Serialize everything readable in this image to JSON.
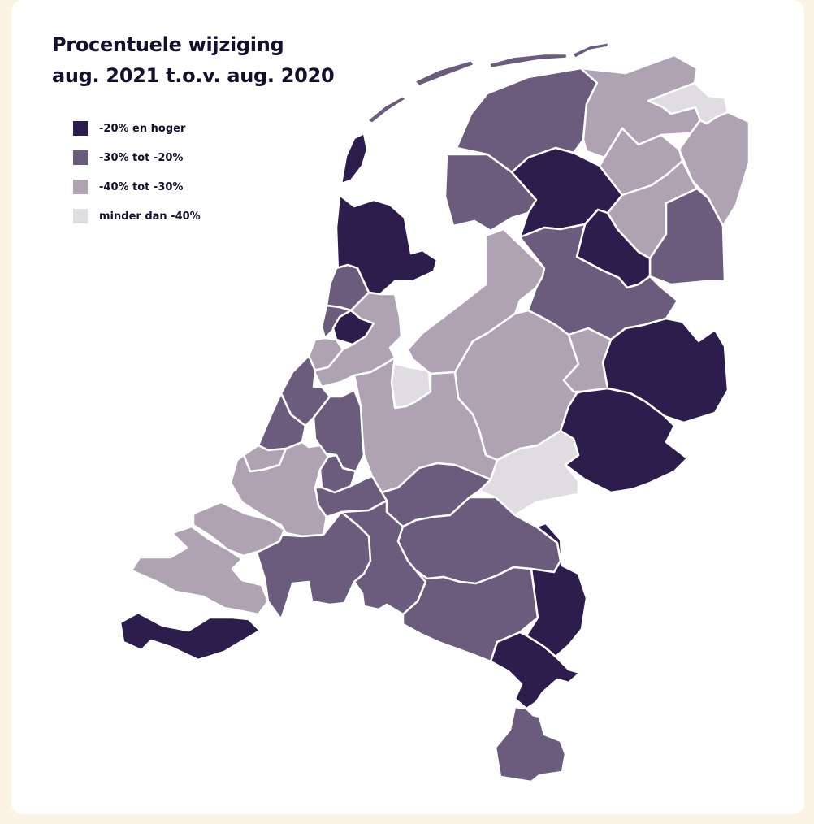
{
  "title": {
    "line1": "Procentuele wijziging",
    "line2": "aug. 2021 t.o.v. aug. 2020"
  },
  "legend": [
    {
      "label": "-20% en hoger",
      "color": "#2c1d4d"
    },
    {
      "label": "-30% tot -20%",
      "color": "#6b5b7c"
    },
    {
      "label": "-40% tot -30%",
      "color": "#aea2b3"
    },
    {
      "label": "minder dan -40%",
      "color": "#e0dde2"
    }
  ],
  "colors": {
    "background": "#fdf3e4",
    "card": "#ffffff",
    "region_border": "#ffffff"
  },
  "regions": [
    {
      "id": "wadden-texel",
      "class": 0
    },
    {
      "id": "wadden-vlieland",
      "class": 1
    },
    {
      "id": "wadden-terschelling",
      "class": 1
    },
    {
      "id": "wadden-ameland",
      "class": 1
    },
    {
      "id": "wadden-schiermonnikoog",
      "class": 1
    },
    {
      "id": "noord-friesland",
      "class": 1
    },
    {
      "id": "zuidwest-friesland",
      "class": 1
    },
    {
      "id": "zuidoost-friesland",
      "class": 0
    },
    {
      "id": "noord-groningen",
      "class": 2
    },
    {
      "id": "delfzijl",
      "class": 3
    },
    {
      "id": "overig-groningen",
      "class": 2
    },
    {
      "id": "oost-groningen",
      "class": 2
    },
    {
      "id": "noord-drenthe",
      "class": 2
    },
    {
      "id": "zuidoost-drenthe",
      "class": 1
    },
    {
      "id": "zuidwest-drenthe",
      "class": 0
    },
    {
      "id": "kop-noord-holland",
      "class": 0
    },
    {
      "id": "alkmaar",
      "class": 1
    },
    {
      "id": "ijmond",
      "class": 1
    },
    {
      "id": "zaanstreek",
      "class": 0
    },
    {
      "id": "agglomeratie-haarlem",
      "class": 2
    },
    {
      "id": "groot-amsterdam",
      "class": 2
    },
    {
      "id": "het-gooi",
      "class": 3
    },
    {
      "id": "flevoland",
      "class": 2
    },
    {
      "id": "noord-overijssel",
      "class": 1
    },
    {
      "id": "twente",
      "class": 0
    },
    {
      "id": "veluwe",
      "class": 2
    },
    {
      "id": "zuidwest-overijssel",
      "class": 2
    },
    {
      "id": "achterhoek",
      "class": 0
    },
    {
      "id": "arnhem-nijmegen",
      "class": 3
    },
    {
      "id": "utrecht",
      "class": 2
    },
    {
      "id": "leiden",
      "class": 1
    },
    {
      "id": "den-haag",
      "class": 1
    },
    {
      "id": "delft-westland",
      "class": 2
    },
    {
      "id": "groot-rijnmond",
      "class": 2
    },
    {
      "id": "oost-zuid-holland",
      "class": 1
    },
    {
      "id": "drechtsteden",
      "class": 1
    },
    {
      "id": "zuidoost-zuid-holland",
      "class": 1
    },
    {
      "id": "rivierenland",
      "class": 1
    },
    {
      "id": "noordoost-brabant",
      "class": 1
    },
    {
      "id": "midden-brabant",
      "class": 1
    },
    {
      "id": "westelijk-brabant",
      "class": 1
    },
    {
      "id": "zuidoost-brabant",
      "class": 1
    },
    {
      "id": "noord-limburg",
      "class": 0
    },
    {
      "id": "midden-limburg",
      "class": 0
    },
    {
      "id": "zuid-limburg",
      "class": 1
    },
    {
      "id": "overig-zeeland",
      "class": 2
    },
    {
      "id": "schouwen",
      "class": 2
    },
    {
      "id": "zeeuws-vlaanderen",
      "class": 0
    }
  ]
}
